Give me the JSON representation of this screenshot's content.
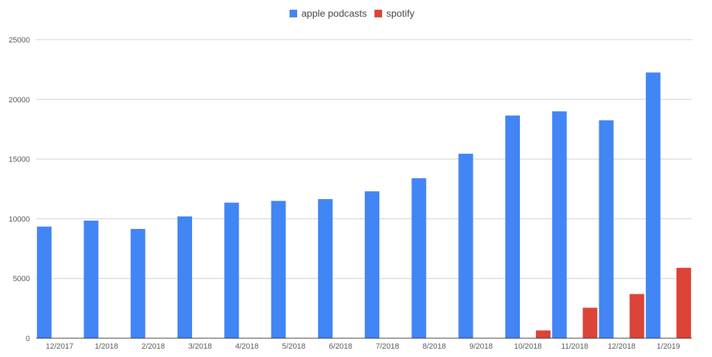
{
  "chart_data": {
    "type": "bar",
    "categories": [
      "12/2017",
      "1/2018",
      "2/2018",
      "3/2018",
      "4/2018",
      "5/2018",
      "6/2018",
      "7/2018",
      "8/2018",
      "9/2018",
      "10/2018",
      "11/2018",
      "12/2018",
      "1/2019"
    ],
    "series": [
      {
        "name": "apple podcasts",
        "color": "#4285f4",
        "values": [
          9350,
          9850,
          9150,
          10200,
          11350,
          11500,
          11650,
          12300,
          13400,
          15450,
          18650,
          19000,
          18250,
          22250
        ]
      },
      {
        "name": "spotify",
        "color": "#db4437",
        "values": [
          0,
          0,
          0,
          0,
          0,
          0,
          0,
          0,
          0,
          0,
          650,
          2550,
          3700,
          5900
        ]
      }
    ],
    "ylim": [
      0,
      25000
    ],
    "yticks": [
      0,
      5000,
      10000,
      15000,
      20000,
      25000
    ],
    "grid": true,
    "legend": "top-center",
    "title": "",
    "xlabel": "",
    "ylabel": ""
  }
}
